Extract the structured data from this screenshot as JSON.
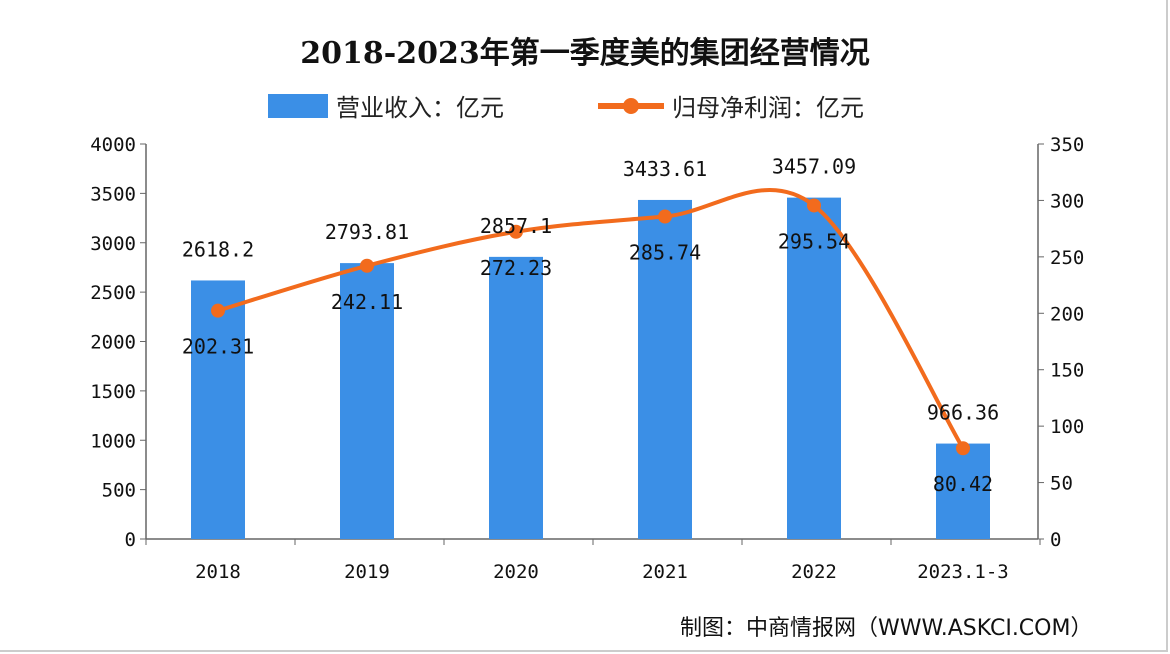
{
  "chart_data": {
    "type": "bar+line",
    "title": "2018-2023年第一季度美的集团经营情况",
    "categories": [
      "2018",
      "2019",
      "2020",
      "2021",
      "2022",
      "2023.1-3"
    ],
    "series": [
      {
        "name": "营业收入：亿元",
        "type": "bar",
        "axis": "left",
        "color": "#3b8fe6",
        "values": [
          2618.2,
          2793.81,
          2857.1,
          3433.61,
          3457.09,
          966.36
        ]
      },
      {
        "name": "归母净利润：亿元",
        "type": "line",
        "axis": "right",
        "color": "#f26b1d",
        "values": [
          202.31,
          242.11,
          272.23,
          285.74,
          295.54,
          80.42
        ]
      }
    ],
    "y_left": {
      "range": [
        0,
        4000
      ],
      "ticks": [
        "0",
        "500",
        "1000",
        "1500",
        "2000",
        "2500",
        "3000",
        "3500",
        "4000"
      ]
    },
    "y_right": {
      "range": [
        0,
        350
      ],
      "ticks": [
        "0",
        "50",
        "100",
        "150",
        "200",
        "250",
        "300",
        "350"
      ]
    },
    "grid": false,
    "legend_position": "top"
  },
  "source": "制图：中商情报网（WWW.ASKCI.COM）"
}
